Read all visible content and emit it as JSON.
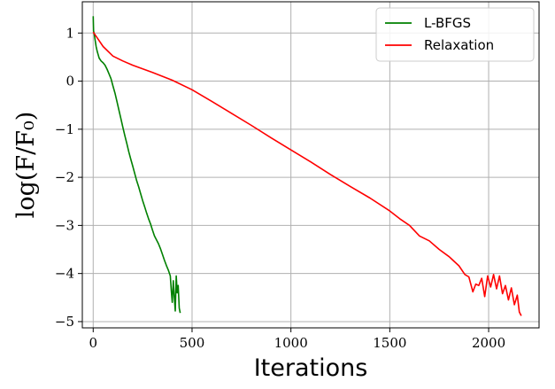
{
  "chart_data": {
    "type": "line",
    "title": "",
    "xlabel": "Iterations",
    "ylabel": "log(F/F₀)",
    "xlim": [
      -55,
      2255
    ],
    "ylim": [
      -5.13,
      1.65
    ],
    "xticks": [
      0,
      500,
      1000,
      1500,
      2000
    ],
    "yticks": [
      1,
      0,
      -1,
      -2,
      -3,
      -4,
      -5
    ],
    "ytick_labels": [
      "1",
      "0",
      "−1",
      "−2",
      "−3",
      "−4",
      "−5"
    ],
    "grid": true,
    "legend_position": "top-right",
    "series": [
      {
        "name": "L-BFGS",
        "color": "#008000",
        "points": [
          [
            0,
            1.35
          ],
          [
            2,
            1.05
          ],
          [
            5,
            0.98
          ],
          [
            10,
            0.85
          ],
          [
            15,
            0.72
          ],
          [
            20,
            0.62
          ],
          [
            25,
            0.55
          ],
          [
            30,
            0.48
          ],
          [
            40,
            0.42
          ],
          [
            50,
            0.38
          ],
          [
            60,
            0.33
          ],
          [
            70,
            0.25
          ],
          [
            80,
            0.15
          ],
          [
            90,
            0.05
          ],
          [
            100,
            -0.1
          ],
          [
            110,
            -0.25
          ],
          [
            120,
            -0.42
          ],
          [
            130,
            -0.6
          ],
          [
            140,
            -0.78
          ],
          [
            150,
            -0.96
          ],
          [
            160,
            -1.13
          ],
          [
            170,
            -1.3
          ],
          [
            180,
            -1.47
          ],
          [
            190,
            -1.62
          ],
          [
            200,
            -1.77
          ],
          [
            210,
            -1.92
          ],
          [
            220,
            -2.07
          ],
          [
            230,
            -2.2
          ],
          [
            240,
            -2.34
          ],
          [
            250,
            -2.48
          ],
          [
            260,
            -2.61
          ],
          [
            270,
            -2.74
          ],
          [
            280,
            -2.86
          ],
          [
            290,
            -2.97
          ],
          [
            300,
            -3.1
          ],
          [
            310,
            -3.22
          ],
          [
            320,
            -3.3
          ],
          [
            330,
            -3.38
          ],
          [
            340,
            -3.48
          ],
          [
            350,
            -3.6
          ],
          [
            360,
            -3.72
          ],
          [
            370,
            -3.83
          ],
          [
            380,
            -3.93
          ],
          [
            390,
            -4.05
          ],
          [
            395,
            -4.35
          ],
          [
            400,
            -4.6
          ],
          [
            405,
            -4.15
          ],
          [
            410,
            -4.48
          ],
          [
            415,
            -4.78
          ],
          [
            420,
            -4.05
          ],
          [
            425,
            -4.4
          ],
          [
            430,
            -4.25
          ],
          [
            435,
            -4.72
          ],
          [
            440,
            -4.82
          ]
        ]
      },
      {
        "name": "Relaxation",
        "color": "#ff0000",
        "points": [
          [
            0,
            1.02
          ],
          [
            20,
            0.9
          ],
          [
            50,
            0.72
          ],
          [
            100,
            0.52
          ],
          [
            150,
            0.42
          ],
          [
            200,
            0.33
          ],
          [
            300,
            0.18
          ],
          [
            400,
            0.02
          ],
          [
            500,
            -0.18
          ],
          [
            600,
            -0.42
          ],
          [
            700,
            -0.67
          ],
          [
            800,
            -0.92
          ],
          [
            900,
            -1.18
          ],
          [
            1000,
            -1.43
          ],
          [
            1100,
            -1.68
          ],
          [
            1200,
            -1.94
          ],
          [
            1300,
            -2.19
          ],
          [
            1400,
            -2.43
          ],
          [
            1500,
            -2.7
          ],
          [
            1550,
            -2.86
          ],
          [
            1600,
            -3.0
          ],
          [
            1650,
            -3.22
          ],
          [
            1700,
            -3.32
          ],
          [
            1750,
            -3.5
          ],
          [
            1800,
            -3.65
          ],
          [
            1850,
            -3.84
          ],
          [
            1880,
            -4.02
          ],
          [
            1900,
            -4.07
          ],
          [
            1920,
            -4.38
          ],
          [
            1935,
            -4.22
          ],
          [
            1950,
            -4.25
          ],
          [
            1965,
            -4.1
          ],
          [
            1980,
            -4.48
          ],
          [
            1995,
            -4.05
          ],
          [
            2010,
            -4.28
          ],
          [
            2025,
            -4.02
          ],
          [
            2040,
            -4.32
          ],
          [
            2055,
            -4.05
          ],
          [
            2070,
            -4.42
          ],
          [
            2085,
            -4.25
          ],
          [
            2100,
            -4.55
          ],
          [
            2115,
            -4.3
          ],
          [
            2130,
            -4.65
          ],
          [
            2145,
            -4.45
          ],
          [
            2155,
            -4.8
          ],
          [
            2165,
            -4.88
          ]
        ]
      }
    ]
  }
}
